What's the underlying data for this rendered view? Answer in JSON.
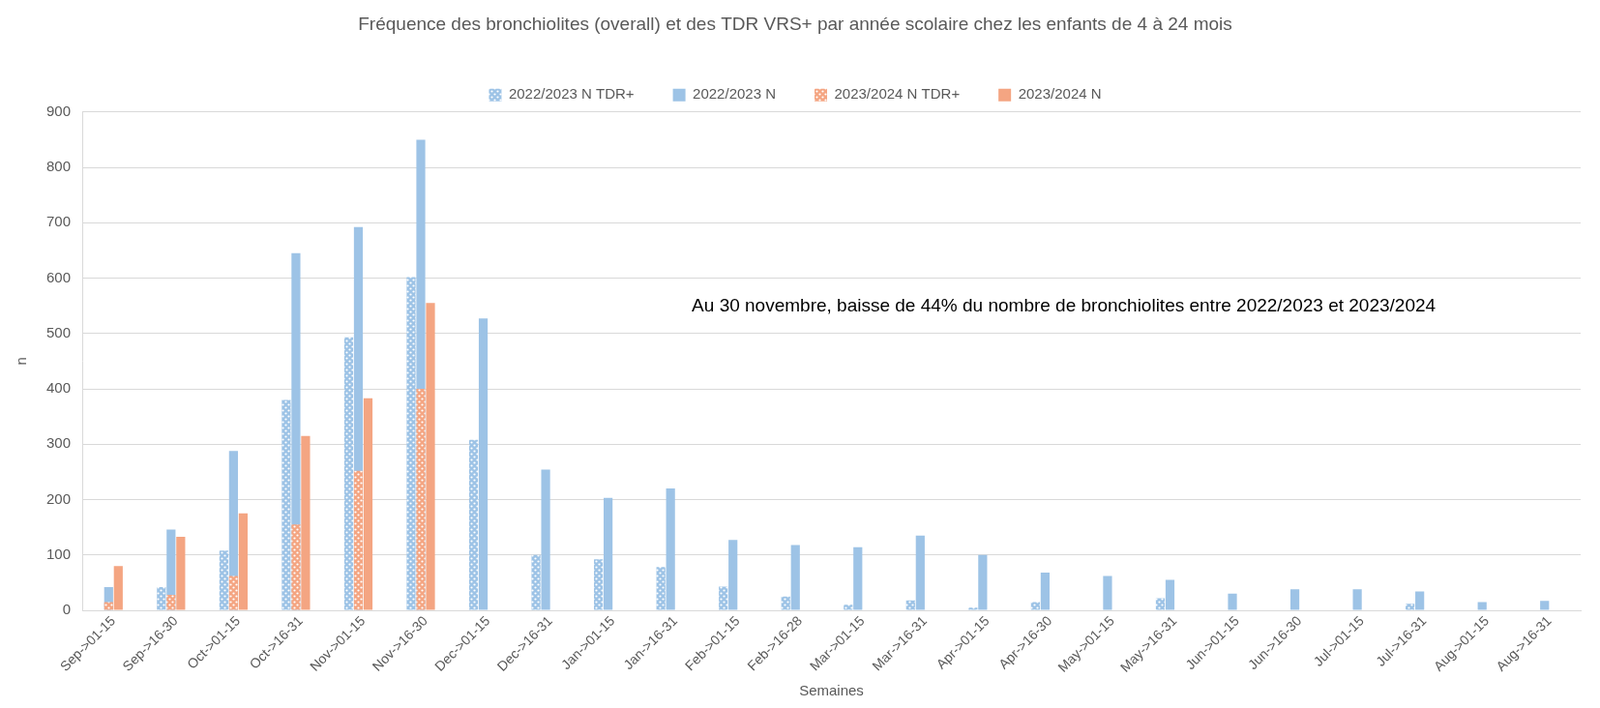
{
  "chart_data": {
    "type": "bar",
    "title": "Fréquence des bronchiolites (overall) et des TDR VRS+ par année scolaire chez les enfants de 4 à 24 mois",
    "x_label": "Semaines",
    "y_label": "n",
    "annotation": "Au 30 novembre, baisse de 44% du nombre de bronchiolites entre 2022/2023 et 2023/2024",
    "categories": [
      "Sep->01-15",
      "Sep->16-30",
      "Oct->01-15",
      "Oct->16-31",
      "Nov->01-15",
      "Nov->16-30",
      "Dec->01-15",
      "Dec->16-31",
      "Jan->01-15",
      "Jan->16-31",
      "Feb->01-15",
      "Feb->16-28",
      "Mar->01-15",
      "Mar->16-31",
      "Apr->01-15",
      "Apr->16-30",
      "May->01-15",
      "May->16-31",
      "Jun->01-15",
      "Jun->16-30",
      "Jul->01-15",
      "Jul->16-31",
      "Aug->01-15",
      "Aug->16-31"
    ],
    "series": [
      {
        "name": "2022/2023 N TDR+",
        "color": "#9dc3e6",
        "marker": "dots",
        "values": [
          0,
          42,
          108,
          380,
          493,
          602,
          308,
          100,
          92,
          78,
          43,
          25,
          10,
          18,
          5,
          15,
          0,
          22,
          0,
          0,
          0,
          12,
          0,
          0
        ]
      },
      {
        "name": "2022/2023 N",
        "color": "#9dc3e6",
        "values": [
          42,
          146,
          288,
          645,
          692,
          850,
          527,
          254,
          203,
          220,
          127,
          118,
          114,
          135,
          100,
          68,
          62,
          55,
          30,
          38,
          38,
          34,
          15,
          17
        ]
      },
      {
        "name": "2023/2024 N TDR+",
        "color": "#f4a582",
        "marker": "dots",
        "values": [
          15,
          28,
          62,
          155,
          252,
          400,
          null,
          null,
          null,
          null,
          null,
          null,
          null,
          null,
          null,
          null,
          null,
          null,
          null,
          null,
          null,
          null,
          null,
          null
        ]
      },
      {
        "name": "2023/2024 N",
        "color": "#f4a582",
        "values": [
          80,
          133,
          175,
          315,
          383,
          555,
          null,
          null,
          null,
          null,
          null,
          null,
          null,
          null,
          null,
          null,
          null,
          null,
          null,
          null,
          null,
          null,
          null,
          null
        ]
      }
    ],
    "ylim": [
      0,
      900
    ],
    "yticks": [
      0,
      100,
      200,
      300,
      400,
      500,
      600,
      700,
      800,
      900
    ],
    "grid": "y",
    "legend": "top"
  }
}
